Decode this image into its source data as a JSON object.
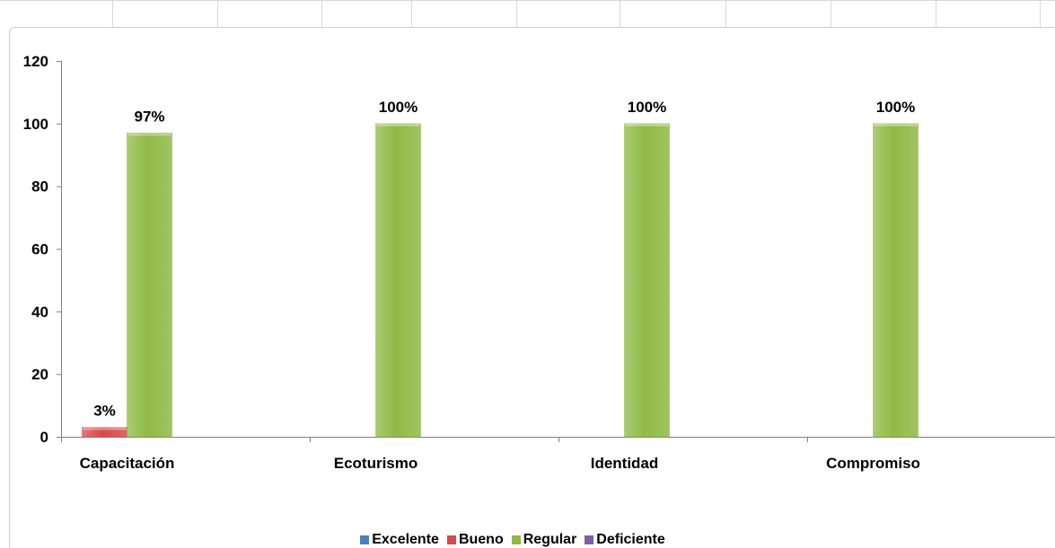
{
  "chart_data": {
    "type": "bar",
    "categories": [
      "Capacitación",
      "Ecoturismo",
      "Identidad",
      "Compromiso"
    ],
    "series": [
      {
        "name": "Excelente",
        "color": "#4a7ebb",
        "values": [
          null,
          null,
          null,
          null
        ],
        "labels": [
          null,
          null,
          null,
          null
        ]
      },
      {
        "name": "Bueno",
        "color": "#d9484a",
        "values": [
          3,
          null,
          null,
          null
        ],
        "labels": [
          "3%",
          null,
          null,
          null
        ]
      },
      {
        "name": "Regular",
        "color": "#8fba45",
        "values": [
          97,
          100,
          100,
          100
        ],
        "labels": [
          "97%",
          "100%",
          "100%",
          "100%"
        ]
      },
      {
        "name": "Deficiente",
        "color": "#7d5fa8",
        "values": [
          null,
          null,
          null,
          null
        ],
        "labels": [
          null,
          null,
          null,
          null
        ]
      }
    ],
    "yticks": [
      "0",
      "20",
      "40",
      "60",
      "80",
      "100",
      "120"
    ],
    "ylim": [
      0,
      120
    ],
    "grid": false,
    "legend_position": "bottom"
  }
}
